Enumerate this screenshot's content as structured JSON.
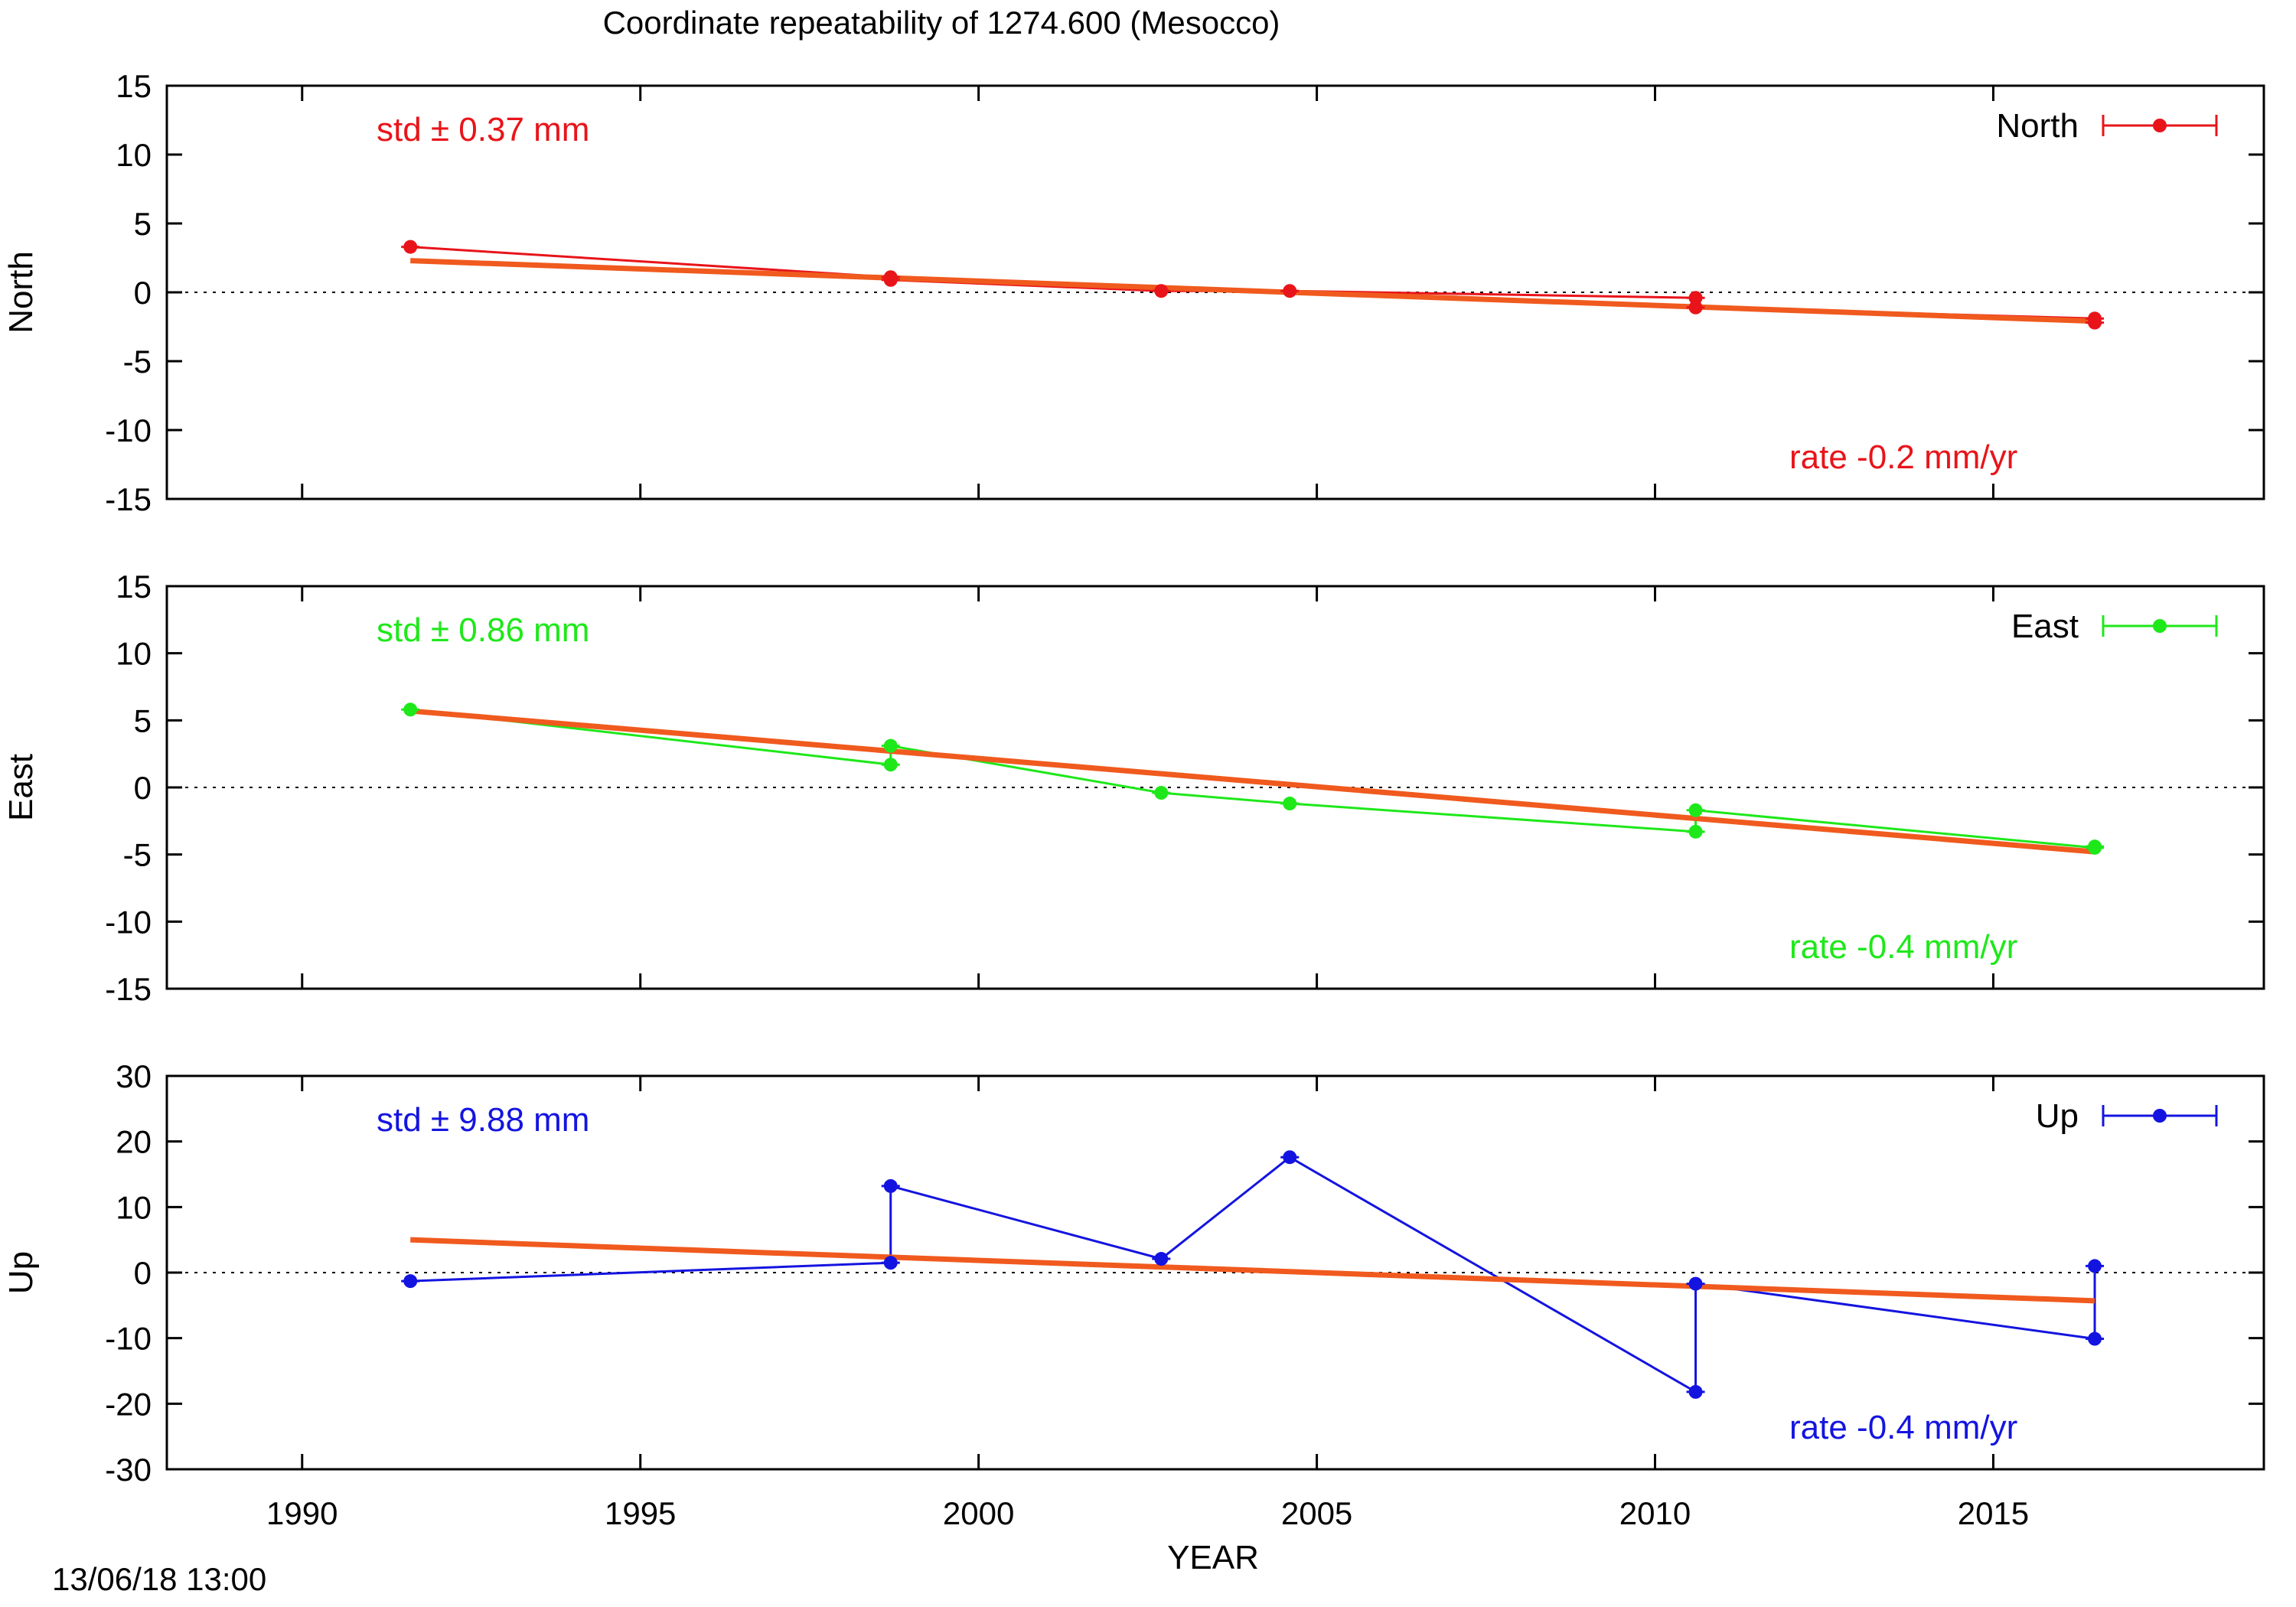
{
  "title": "Coordinate repeatability of 1274.600       (Mesocco)",
  "timestamp": "13/06/18 13:00",
  "colors": {
    "north": "#e8141a",
    "east": "#1ee81a",
    "up": "#1414e0",
    "fit": "#f05a1e",
    "axis": "#000000"
  },
  "chart_data": [
    {
      "type": "line",
      "component": "North",
      "ylabel": "North",
      "xlabel": "",
      "xlim": [
        1988,
        2019
      ],
      "ylim": [
        -15,
        15
      ],
      "yticks": [
        15,
        10,
        5,
        0,
        -5,
        -10,
        -15
      ],
      "xticks": [
        1990,
        1995,
        2000,
        2005,
        2010,
        2015
      ],
      "legend": "North",
      "legend_position": "top-right",
      "std_label": "std ± 0.37 mm",
      "rate_label": "rate -0.2 mm/yr",
      "zero_line": true,
      "series": [
        {
          "name": "North",
          "x": [
            1991.6,
            1998.7,
            1998.7,
            2002.7,
            2004.6,
            2010.6,
            2010.6,
            2016.5,
            2016.5
          ],
          "y": [
            3.3,
            1.1,
            0.9,
            0.1,
            0.1,
            -0.4,
            -1.1,
            -1.9,
            -2.2
          ]
        }
      ],
      "fit": {
        "x": [
          1991.6,
          2016.5
        ],
        "y": [
          2.3,
          -2.1
        ]
      }
    },
    {
      "type": "line",
      "component": "East",
      "ylabel": "East",
      "xlabel": "",
      "xlim": [
        1988,
        2019
      ],
      "ylim": [
        -15,
        15
      ],
      "yticks": [
        15,
        10,
        5,
        0,
        -5,
        -10,
        -15
      ],
      "xticks": [
        1990,
        1995,
        2000,
        2005,
        2010,
        2015
      ],
      "legend": "East",
      "legend_position": "top-right",
      "std_label": "std ± 0.86 mm",
      "rate_label": "rate -0.4 mm/yr",
      "zero_line": true,
      "series": [
        {
          "name": "East",
          "x": [
            1991.6,
            1998.7,
            1998.7,
            2002.7,
            2004.6,
            2010.6,
            2010.6,
            2016.5,
            2016.5
          ],
          "y": [
            5.8,
            1.7,
            3.1,
            -0.4,
            -1.2,
            -3.3,
            -1.7,
            -4.5,
            -4.4
          ]
        }
      ],
      "fit": {
        "x": [
          1991.6,
          2016.5
        ],
        "y": [
          5.7,
          -4.8
        ]
      }
    },
    {
      "type": "line",
      "component": "Up",
      "ylabel": "Up",
      "xlabel": "YEAR",
      "xlim": [
        1988,
        2019
      ],
      "ylim": [
        -30,
        30
      ],
      "yticks": [
        30,
        20,
        10,
        0,
        -10,
        -20,
        -30
      ],
      "xticks": [
        1990,
        1995,
        2000,
        2005,
        2010,
        2015
      ],
      "legend": "Up",
      "legend_position": "top-right",
      "std_label": "std ± 9.88 mm",
      "rate_label": "rate -0.4 mm/yr",
      "zero_line": true,
      "series": [
        {
          "name": "Up",
          "x": [
            1991.6,
            1998.7,
            1998.7,
            2002.7,
            2004.6,
            2010.6,
            2010.6,
            2016.5,
            2016.5
          ],
          "y": [
            -1.3,
            1.5,
            13.2,
            2.1,
            17.6,
            -18.2,
            -1.7,
            -10.1,
            1.0
          ]
        }
      ],
      "fit": {
        "x": [
          1991.6,
          2016.5
        ],
        "y": [
          5.0,
          -4.3
        ]
      }
    }
  ]
}
